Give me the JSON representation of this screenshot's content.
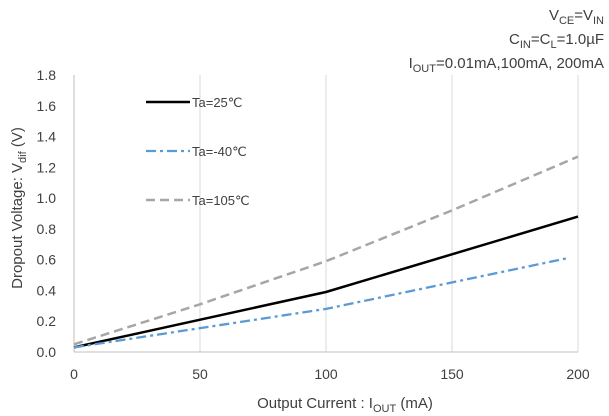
{
  "conditions": {
    "line1": {
      "a": "V",
      "a_sub": "CE",
      "b": "=V",
      "b_sub": "IN"
    },
    "line2": {
      "a": "C",
      "a_sub": "IN",
      "b": "=C",
      "b_sub": "L",
      "c": "=1.0µF"
    },
    "line3": {
      "a": "I",
      "a_sub": "OUT",
      "b": "=0.01mA,100mA,  200mA"
    }
  },
  "chart_data": {
    "type": "line",
    "xlabel": {
      "main": "Output Current  : I",
      "sub": "OUT",
      "unit": " (mA)"
    },
    "ylabel": {
      "main": "Dropout  Voltage:  V",
      "sub": "dif",
      "unit": " (V)"
    },
    "xlim": [
      0,
      200
    ],
    "ylim": [
      0,
      1.8
    ],
    "x_ticks": [
      "0",
      "50",
      "100",
      "150",
      "200"
    ],
    "y_ticks": [
      "0.0",
      "0.2",
      "0.4",
      "0.6",
      "0.8",
      "1.0",
      "1.2",
      "1.4",
      "1.6",
      "1.8"
    ],
    "grid": {
      "vertical": true,
      "horizontal": false
    },
    "legend_position": "top-left",
    "series": [
      {
        "name": "Ta=25℃",
        "color": "#000000",
        "style": "solid",
        "x": [
          0,
          100,
          200
        ],
        "y": [
          0.03,
          0.39,
          0.88
        ]
      },
      {
        "name": "Ta=-40℃",
        "color": "#5b9bd5",
        "style": "dashdot",
        "x": [
          0,
          100,
          196
        ],
        "y": [
          0.03,
          0.28,
          0.61
        ]
      },
      {
        "name": "Ta=105℃",
        "color": "#a6a6a6",
        "style": "dashed",
        "x": [
          0,
          50,
          100,
          150,
          200
        ],
        "y": [
          0.05,
          0.31,
          0.59,
          0.92,
          1.27
        ]
      }
    ]
  }
}
